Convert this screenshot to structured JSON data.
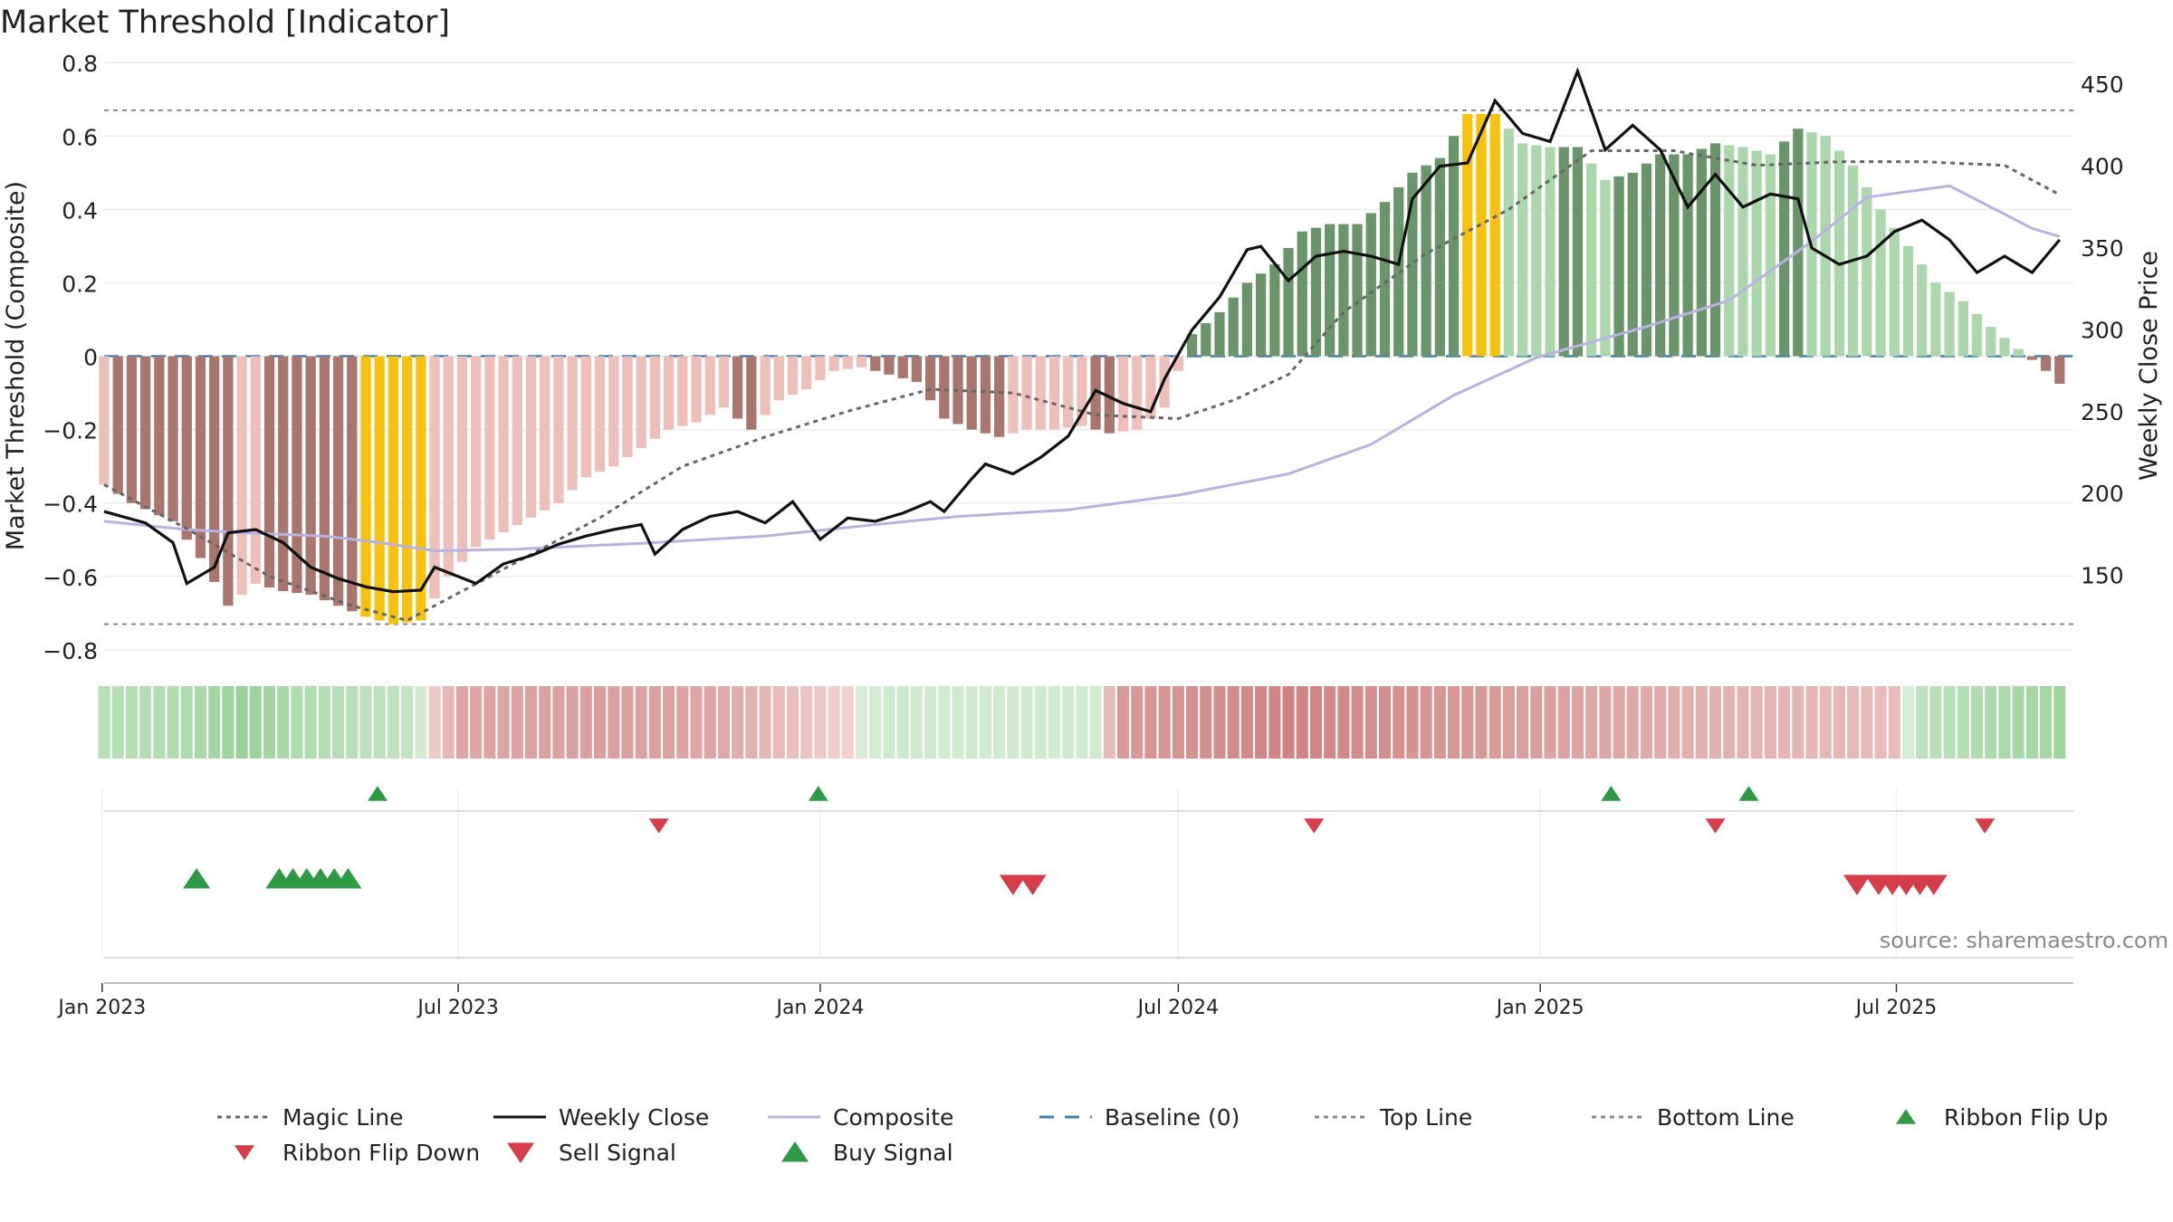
{
  "chart_data": {
    "type": "bar",
    "title": "Market Threshold [Indicator]",
    "ylabel": "Market Threshold (Composite)",
    "y2label": "Weekly Close Price",
    "source": "source: sharemaestro.com",
    "ylim": [
      -0.82,
      0.83
    ],
    "y2lim": [
      100,
      470
    ],
    "x_start": "2023-01-02",
    "x_end": "2025-09-29",
    "yticks": [
      {
        "v": 0.8,
        "label": "0.8"
      },
      {
        "v": 0.6,
        "label": "0.6"
      },
      {
        "v": 0.4,
        "label": "0.4"
      },
      {
        "v": 0.2,
        "label": "0.2"
      },
      {
        "v": 0,
        "label": "0"
      },
      {
        "v": -0.2,
        "label": "−0.2"
      },
      {
        "v": -0.4,
        "label": "−0.4"
      },
      {
        "v": -0.6,
        "label": "−0.6"
      },
      {
        "v": -0.8,
        "label": "−0.8"
      }
    ],
    "y2ticks": [
      {
        "v": 450,
        "label": "450"
      },
      {
        "v": 400,
        "label": "400"
      },
      {
        "v": 350,
        "label": "350"
      },
      {
        "v": 300,
        "label": "300"
      },
      {
        "v": 250,
        "label": "250"
      },
      {
        "v": 200,
        "label": "200"
      },
      {
        "v": 150,
        "label": "150"
      }
    ],
    "xticks": [
      {
        "date": "2023-01-01",
        "label": "Jan 2023"
      },
      {
        "date": "2023-07-01",
        "label": "Jul 2023"
      },
      {
        "date": "2024-01-01",
        "label": "Jan 2024"
      },
      {
        "date": "2024-07-01",
        "label": "Jul 2024"
      },
      {
        "date": "2025-01-01",
        "label": "Jan 2025"
      },
      {
        "date": "2025-07-01",
        "label": "Jul 2025"
      }
    ],
    "top_line": 0.67,
    "bottom_line": -0.73,
    "baseline": 0,
    "colors": {
      "pos_dark": "#6a956a",
      "pos_light": "#acd6ac",
      "neg_dark": "#a8766f",
      "neg_light": "#edbfba",
      "extreme": "#f7c110",
      "weekly_close": "#111111",
      "composite": "#b9b2e0",
      "magic_line": "#666666",
      "baseline": "#3d7fae",
      "buy": "#2e9a45",
      "sell": "#d63d4a"
    },
    "composite_keys": [
      [
        0,
        -0.35
      ],
      [
        2,
        -0.4
      ],
      [
        5,
        -0.45
      ],
      [
        7,
        -0.55
      ],
      [
        9,
        -0.68
      ],
      [
        11,
        -0.62
      ],
      [
        13,
        -0.64
      ],
      [
        15,
        -0.65
      ],
      [
        17,
        -0.68
      ],
      [
        19,
        -0.71
      ],
      [
        21,
        -0.73
      ],
      [
        23,
        -0.72
      ],
      [
        25,
        -0.6
      ],
      [
        27,
        -0.52
      ],
      [
        29,
        -0.48
      ],
      [
        31,
        -0.44
      ],
      [
        33,
        -0.4
      ],
      [
        35,
        -0.33
      ],
      [
        37,
        -0.3
      ],
      [
        39,
        -0.25
      ],
      [
        41,
        -0.2
      ],
      [
        43,
        -0.18
      ],
      [
        45,
        -0.14
      ],
      [
        47,
        -0.2
      ],
      [
        49,
        -0.12
      ],
      [
        51,
        -0.09
      ],
      [
        53,
        -0.04
      ],
      [
        55,
        -0.03
      ],
      [
        57,
        -0.05
      ],
      [
        59,
        -0.07
      ],
      [
        61,
        -0.17
      ],
      [
        63,
        -0.2
      ],
      [
        65,
        -0.22
      ],
      [
        67,
        -0.2
      ],
      [
        69,
        -0.2
      ],
      [
        71,
        -0.19
      ],
      [
        73,
        -0.21
      ],
      [
        75,
        -0.2
      ],
      [
        77,
        -0.14
      ],
      [
        79,
        0.06
      ],
      [
        81,
        0.12
      ],
      [
        83,
        0.2
      ],
      [
        85,
        0.25
      ],
      [
        87,
        0.34
      ],
      [
        89,
        0.36
      ],
      [
        91,
        0.36
      ],
      [
        93,
        0.42
      ],
      [
        95,
        0.5
      ],
      [
        97,
        0.54
      ],
      [
        99,
        0.66
      ],
      [
        101,
        0.66
      ],
      [
        103,
        0.58
      ],
      [
        105,
        0.57
      ],
      [
        107,
        0.57
      ],
      [
        109,
        0.48
      ],
      [
        111,
        0.5
      ],
      [
        113,
        0.55
      ],
      [
        115,
        0.55
      ],
      [
        117,
        0.58
      ],
      [
        119,
        0.57
      ],
      [
        121,
        0.55
      ],
      [
        123,
        0.62
      ],
      [
        125,
        0.6
      ],
      [
        127,
        0.52
      ],
      [
        129,
        0.4
      ],
      [
        131,
        0.3
      ],
      [
        133,
        0.2
      ],
      [
        135,
        0.15
      ],
      [
        137,
        0.08
      ],
      [
        139,
        0.02
      ],
      [
        141,
        -0.04
      ],
      [
        143,
        -0.11
      ],
      [
        145,
        -0.12
      ],
      [
        147,
        -0.05
      ],
      [
        149,
        -0.02
      ],
      [
        151,
        -0.04
      ],
      [
        153,
        -0.05
      ],
      [
        155,
        -0.02
      ],
      [
        157,
        0.0
      ],
      [
        159,
        0.07
      ],
      [
        161,
        0.14
      ],
      [
        163,
        0.18
      ],
      [
        165,
        0.15
      ],
      [
        167,
        0.1
      ],
      [
        169,
        0.07
      ],
      [
        171,
        0.03
      ],
      [
        173,
        -0.02
      ],
      [
        175,
        0.0
      ],
      [
        177,
        0.1
      ],
      [
        179,
        0.25
      ],
      [
        181,
        0.38
      ],
      [
        183,
        0.45
      ],
      [
        185,
        0.5
      ],
      [
        187,
        0.55
      ],
      [
        189,
        0.6
      ],
      [
        191,
        0.63
      ],
      [
        193,
        0.65
      ],
      [
        195,
        0.67
      ],
      [
        197,
        0.71
      ],
      [
        199,
        0.64
      ],
      [
        201,
        0.55
      ],
      [
        203,
        0.42
      ],
      [
        205,
        0.25
      ],
      [
        207,
        0.14
      ],
      [
        209,
        0.08
      ],
      [
        211,
        0.03
      ],
      [
        213,
        0.0
      ],
      [
        215,
        -0.02
      ],
      [
        217,
        -0.04
      ]
    ],
    "weekly_close_keys": [
      [
        0,
        189
      ],
      [
        3,
        182
      ],
      [
        5,
        170
      ],
      [
        6,
        145
      ],
      [
        8,
        155
      ],
      [
        9,
        176
      ],
      [
        11,
        178
      ],
      [
        13,
        170
      ],
      [
        15,
        155
      ],
      [
        17,
        148
      ],
      [
        19,
        143
      ],
      [
        21,
        140
      ],
      [
        23,
        141
      ],
      [
        24,
        155
      ],
      [
        27,
        145
      ],
      [
        29,
        157
      ],
      [
        31,
        162
      ],
      [
        33,
        169
      ],
      [
        35,
        174
      ],
      [
        37,
        178
      ],
      [
        39,
        181
      ],
      [
        40,
        163
      ],
      [
        42,
        178
      ],
      [
        44,
        186
      ],
      [
        46,
        189
      ],
      [
        48,
        182
      ],
      [
        50,
        195
      ],
      [
        52,
        172
      ],
      [
        54,
        185
      ],
      [
        56,
        183
      ],
      [
        58,
        188
      ],
      [
        60,
        195
      ],
      [
        61,
        189
      ],
      [
        63,
        209
      ],
      [
        64,
        218
      ],
      [
        66,
        212
      ],
      [
        68,
        222
      ],
      [
        70,
        235
      ],
      [
        72,
        263
      ],
      [
        74,
        255
      ],
      [
        76,
        250
      ],
      [
        77,
        270
      ],
      [
        79,
        300
      ],
      [
        81,
        320
      ],
      [
        83,
        349
      ],
      [
        84,
        351
      ],
      [
        86,
        330
      ],
      [
        88,
        345
      ],
      [
        90,
        348
      ],
      [
        92,
        345
      ],
      [
        94,
        340
      ],
      [
        95,
        380
      ],
      [
        97,
        400
      ],
      [
        99,
        402
      ],
      [
        101,
        440
      ],
      [
        103,
        420
      ],
      [
        105,
        415
      ],
      [
        107,
        458
      ],
      [
        109,
        410
      ],
      [
        111,
        425
      ],
      [
        113,
        410
      ],
      [
        115,
        375
      ],
      [
        117,
        395
      ],
      [
        119,
        375
      ],
      [
        121,
        383
      ],
      [
        123,
        380
      ],
      [
        124,
        350
      ],
      [
        126,
        340
      ],
      [
        128,
        345
      ],
      [
        130,
        360
      ],
      [
        132,
        367
      ],
      [
        134,
        355
      ],
      [
        136,
        335
      ],
      [
        138,
        345
      ],
      [
        140,
        335
      ],
      [
        142,
        355
      ],
      [
        144,
        340
      ],
      [
        146,
        362
      ],
      [
        148,
        358
      ],
      [
        150,
        325
      ],
      [
        152,
        335
      ],
      [
        154,
        338
      ],
      [
        156,
        345
      ],
      [
        158,
        355
      ],
      [
        160,
        330
      ],
      [
        162,
        348
      ],
      [
        164,
        377
      ],
      [
        166,
        392
      ],
      [
        168,
        395
      ],
      [
        170,
        385
      ],
      [
        172,
        380
      ],
      [
        174,
        376
      ],
      [
        176,
        370
      ],
      [
        178,
        388
      ],
      [
        180,
        395
      ],
      [
        182,
        411
      ],
      [
        184,
        408
      ],
      [
        186,
        403
      ],
      [
        188,
        372
      ],
      [
        190,
        348
      ],
      [
        192,
        330
      ],
      [
        194,
        335
      ],
      [
        196,
        338
      ],
      [
        198,
        339
      ],
      [
        199,
        341
      ],
      [
        201,
        361
      ],
      [
        202,
        352
      ]
    ],
    "composite_avg_keys": [
      [
        0,
        183
      ],
      [
        6,
        178
      ],
      [
        10,
        176
      ],
      [
        16,
        174
      ],
      [
        20,
        170
      ],
      [
        24,
        165
      ],
      [
        30,
        166
      ],
      [
        40,
        170
      ],
      [
        48,
        174
      ],
      [
        56,
        181
      ],
      [
        62,
        186
      ],
      [
        70,
        190
      ],
      [
        78,
        199
      ],
      [
        86,
        212
      ],
      [
        92,
        230
      ],
      [
        98,
        260
      ],
      [
        104,
        283
      ],
      [
        112,
        302
      ],
      [
        118,
        318
      ],
      [
        124,
        354
      ],
      [
        128,
        381
      ],
      [
        134,
        388
      ],
      [
        140,
        362
      ],
      [
        146,
        347
      ],
      [
        152,
        346
      ],
      [
        158,
        348
      ],
      [
        164,
        342
      ],
      [
        170,
        338
      ],
      [
        176,
        358
      ],
      [
        182,
        367
      ],
      [
        188,
        375
      ],
      [
        192,
        378
      ],
      [
        196,
        371
      ],
      [
        200,
        365
      ],
      [
        203,
        354
      ],
      [
        205,
        352
      ]
    ],
    "magic_line_keys": [
      [
        0,
        -0.35
      ],
      [
        6,
        -0.47
      ],
      [
        12,
        -0.6
      ],
      [
        18,
        -0.68
      ],
      [
        22,
        -0.72
      ],
      [
        28,
        -0.6
      ],
      [
        36,
        -0.44
      ],
      [
        42,
        -0.3
      ],
      [
        48,
        -0.22
      ],
      [
        54,
        -0.15
      ],
      [
        60,
        -0.09
      ],
      [
        66,
        -0.1
      ],
      [
        72,
        -0.16
      ],
      [
        78,
        -0.17
      ],
      [
        82,
        -0.12
      ],
      [
        86,
        -0.05
      ],
      [
        90,
        0.12
      ],
      [
        96,
        0.28
      ],
      [
        102,
        0.4
      ],
      [
        108,
        0.56
      ],
      [
        114,
        0.56
      ],
      [
        120,
        0.52
      ],
      [
        126,
        0.53
      ],
      [
        132,
        0.53
      ],
      [
        138,
        0.52
      ],
      [
        144,
        0.4
      ],
      [
        150,
        0.2
      ],
      [
        156,
        0.05
      ],
      [
        162,
        -0.01
      ],
      [
        168,
        -0.03
      ],
      [
        174,
        0.0
      ],
      [
        180,
        0.05
      ],
      [
        186,
        0.1
      ],
      [
        192,
        0.05
      ],
      [
        198,
        0.3
      ],
      [
        204,
        0.45
      ],
      [
        208,
        0.6
      ],
      [
        212,
        0.57
      ],
      [
        216,
        0.35
      ],
      [
        220,
        0.2
      ],
      [
        224,
        0.11
      ],
      [
        228,
        0.05
      ]
    ],
    "ribbon_keys": [
      [
        0,
        0.35
      ],
      [
        6,
        0.45
      ],
      [
        10,
        0.7
      ],
      [
        14,
        0.45
      ],
      [
        18,
        0.35
      ],
      [
        22,
        0.25
      ],
      [
        26,
        -0.4
      ],
      [
        36,
        -0.45
      ],
      [
        44,
        -0.4
      ],
      [
        58,
        0.15
      ],
      [
        60,
        0.1
      ],
      [
        72,
        0.1
      ],
      [
        74,
        -0.5
      ],
      [
        86,
        -0.7
      ],
      [
        96,
        -0.55
      ],
      [
        116,
        -0.3
      ],
      [
        130,
        -0.2
      ],
      [
        132,
        0.3
      ],
      [
        138,
        0.5
      ],
      [
        144,
        0.65
      ],
      [
        148,
        0.45
      ],
      [
        152,
        0.35
      ],
      [
        156,
        -0.3
      ],
      [
        158,
        -0.2
      ],
      [
        164,
        0.12
      ],
      [
        168,
        0.15
      ],
      [
        174,
        -0.5
      ],
      [
        182,
        -0.65
      ],
      [
        196,
        -0.6
      ],
      [
        204,
        0.3
      ],
      [
        210,
        0.5
      ],
      [
        216,
        0.5
      ]
    ],
    "ribbon_flip_up": [
      "2023-05-21",
      "2023-12-31",
      "2025-02-06",
      "2025-04-17"
    ],
    "ribbon_flip_down": [
      "2023-10-11",
      "2024-09-08",
      "2025-03-31",
      "2025-08-15"
    ],
    "buy_signals": [
      "2023-02-18",
      "2023-04-01",
      "2023-04-08",
      "2023-04-15",
      "2023-04-22",
      "2023-04-29",
      "2023-05-06"
    ],
    "sell_signals": [
      "2024-04-08",
      "2024-04-18",
      "2025-06-11",
      "2025-06-22",
      "2025-06-29",
      "2025-07-06",
      "2025-07-13",
      "2025-07-20"
    ],
    "legend": [
      {
        "name": "Magic Line",
        "type": "dotted",
        "color": "#666666"
      },
      {
        "name": "Weekly Close",
        "type": "solid",
        "color": "#111111"
      },
      {
        "name": "Composite",
        "type": "solid",
        "color": "#b9b2e0"
      },
      {
        "name": "Baseline (0)",
        "type": "dashed",
        "color": "#3d7fae"
      },
      {
        "name": "Top Line",
        "type": "dotted",
        "color": "#888888"
      },
      {
        "name": "Bottom Line",
        "type": "dotted",
        "color": "#888888"
      },
      {
        "name": "Ribbon Flip Up",
        "type": "tri-up-small",
        "color": "#2e9a45"
      },
      {
        "name": "Ribbon Flip Down",
        "type": "tri-down-small",
        "color": "#d63d4a"
      },
      {
        "name": "Sell Signal",
        "type": "tri-down",
        "color": "#d63d4a"
      },
      {
        "name": "Buy Signal",
        "type": "tri-up",
        "color": "#2e9a45"
      }
    ]
  }
}
